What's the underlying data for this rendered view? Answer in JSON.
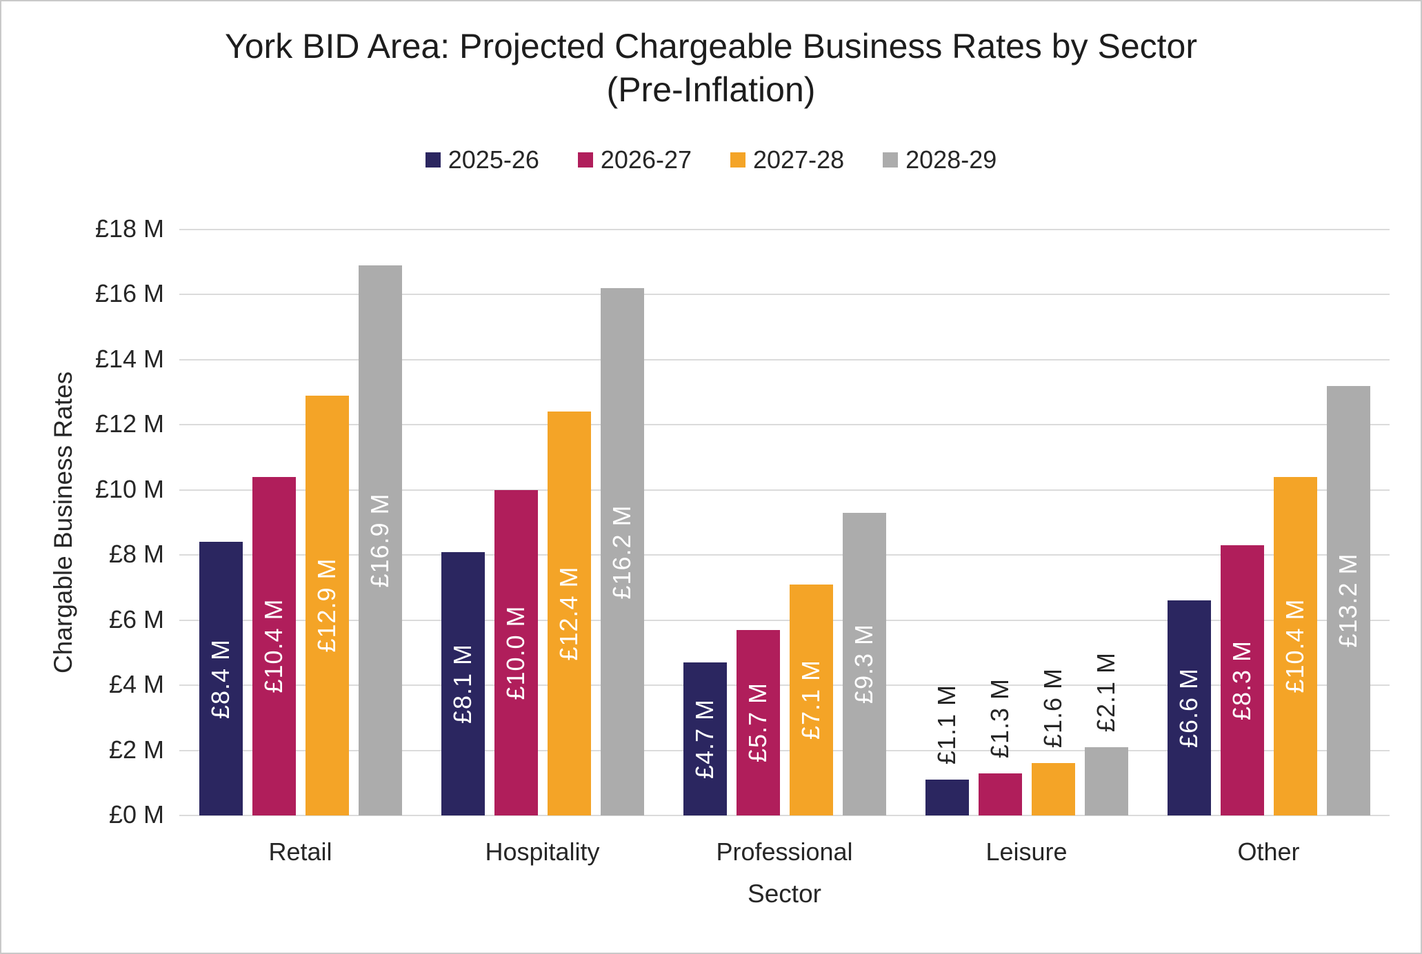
{
  "header": {
    "title_line1": "York BID Area: Projected Chargeable Business Rates by Sector",
    "title_line2": "(Pre-Inflation)"
  },
  "chart_data": {
    "type": "bar",
    "title": "York BID Area: Projected Chargeable Business Rates by Sector (Pre-Inflation)",
    "xlabel": "Sector",
    "ylabel": "Chargable Business Rates",
    "categories": [
      "Retail",
      "Hospitality",
      "Professional",
      "Leisure",
      "Other"
    ],
    "series": [
      {
        "name": "2025-26",
        "color": "#2B2660",
        "values": [
          8.4,
          8.1,
          4.7,
          1.1,
          6.6
        ],
        "data_labels": [
          "£8.4 M",
          "£8.1 M",
          "£4.7 M",
          "£1.1 M",
          "£6.6 M"
        ]
      },
      {
        "name": "2026-27",
        "color": "#B01E5B",
        "values": [
          10.4,
          10.0,
          5.7,
          1.3,
          8.3
        ],
        "data_labels": [
          "£10.4 M",
          "£10.0 M",
          "£5.7 M",
          "£1.3 M",
          "£8.3 M"
        ]
      },
      {
        "name": "2027-28",
        "color": "#F4A427",
        "values": [
          12.9,
          12.4,
          7.1,
          1.6,
          10.4
        ],
        "data_labels": [
          "£12.9 M",
          "£12.4 M",
          "£7.1 M",
          "£1.6 M",
          "£10.4 M"
        ]
      },
      {
        "name": "2028-29",
        "color": "#ACACAC",
        "values": [
          16.9,
          16.2,
          9.3,
          2.1,
          13.2
        ],
        "data_labels": [
          "£16.9 M",
          "£16.2 M",
          "£9.3 M",
          "£2.1 M",
          "£13.2 M"
        ]
      }
    ],
    "ylim": [
      0,
      18
    ],
    "ytick_labels": [
      "£0 M",
      "£2 M",
      "£4 M",
      "£6 M",
      "£8 M",
      "£10 M",
      "£12 M",
      "£14 M",
      "£16 M",
      "£18 M"
    ],
    "grid": "horizontal",
    "legend_position": "top",
    "gridline_color": "#DBDBDB",
    "label_inside_color": "#FFFFFF",
    "label_outside_color": "#262626"
  }
}
